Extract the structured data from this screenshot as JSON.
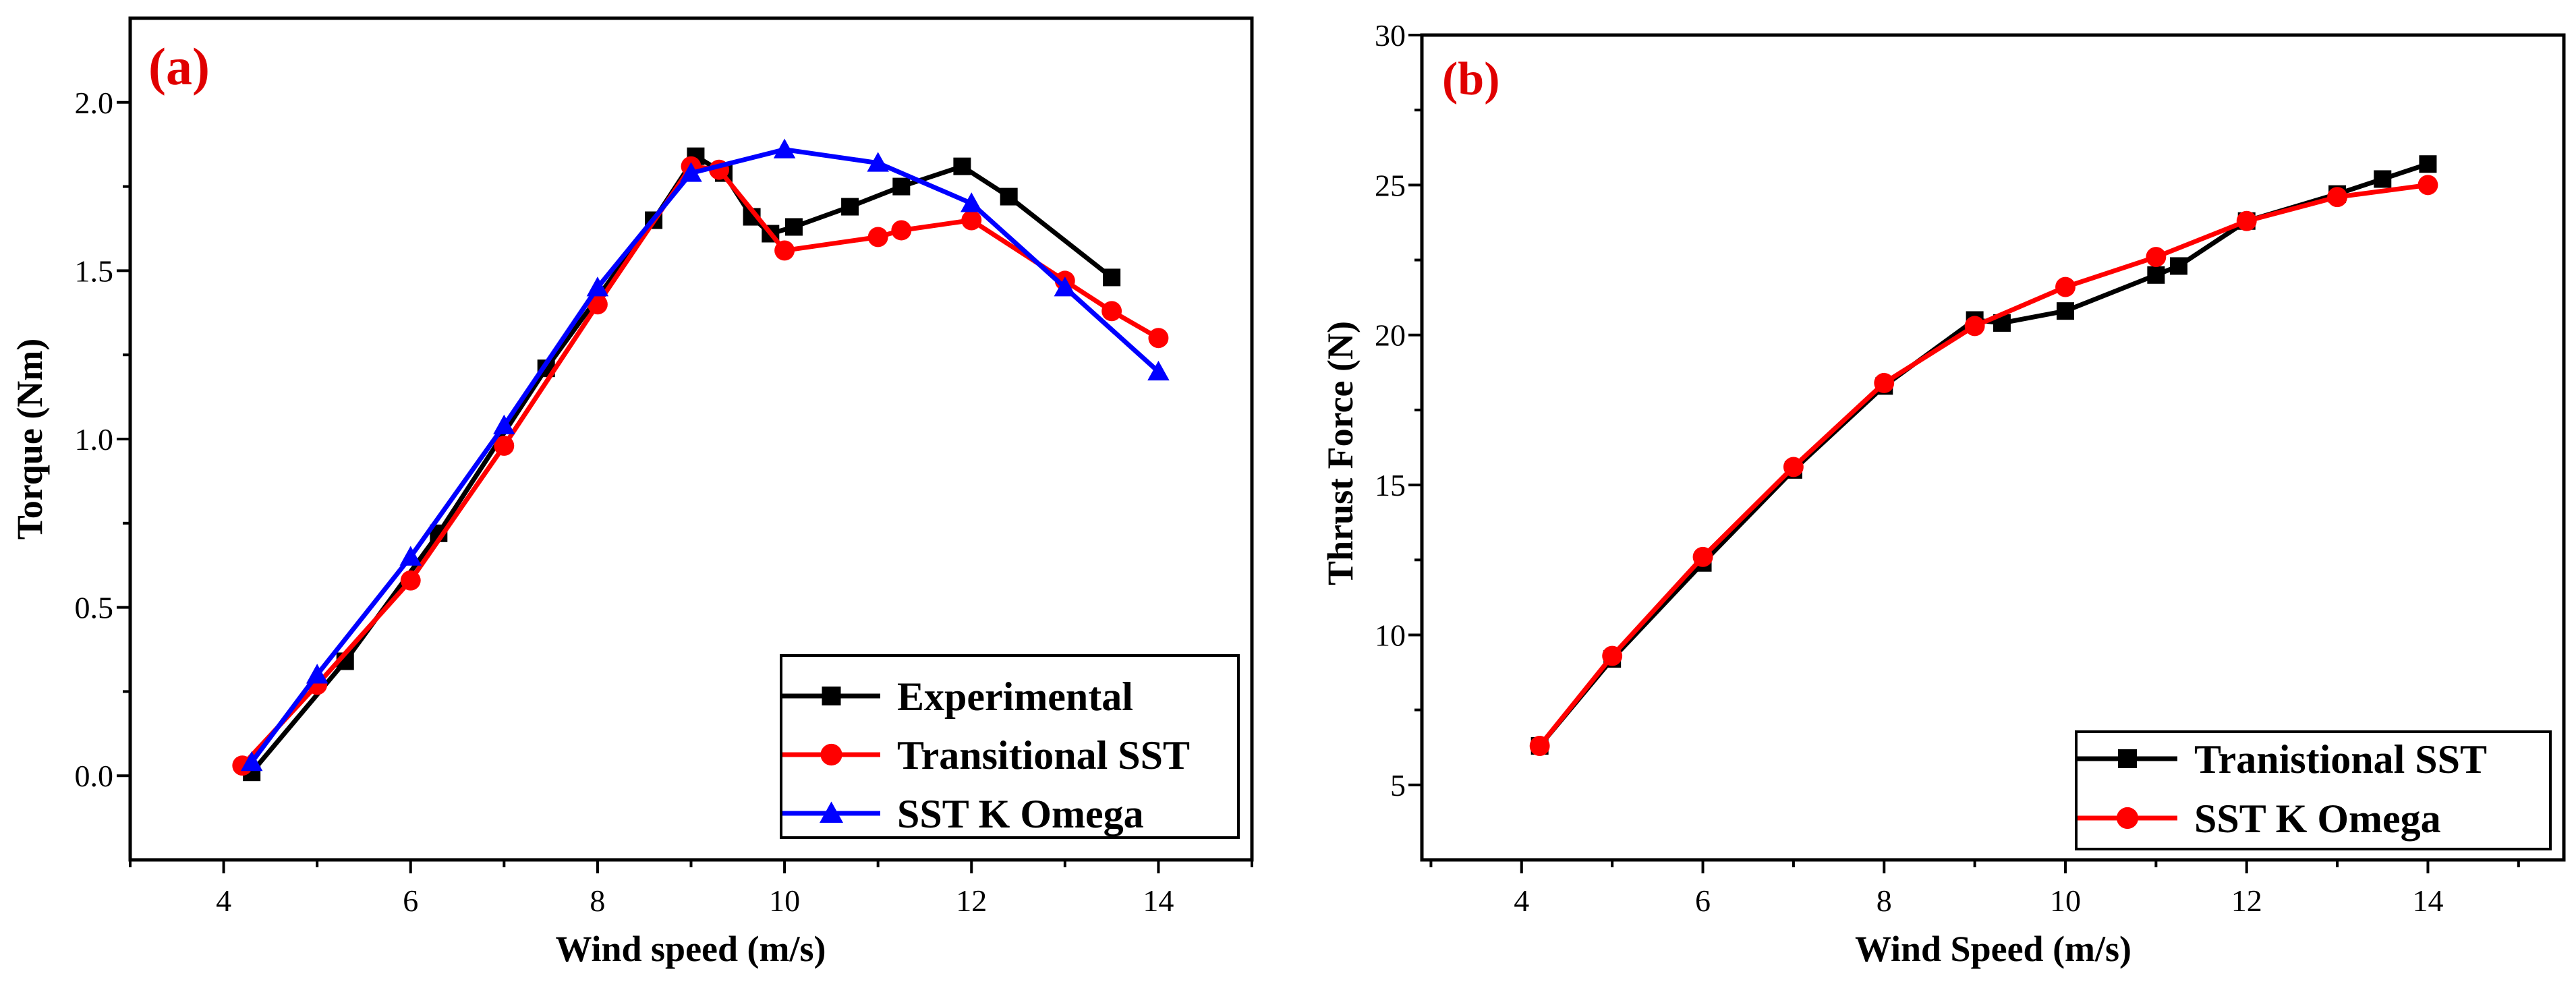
{
  "colors": {
    "experimental": "#000000",
    "transitional": "#ff0000",
    "sst_k_omega": "#0000ff",
    "panel_label": "#e00000",
    "axes": "#000000"
  },
  "chart_data": [
    {
      "type": "line",
      "panel_label": "(a)",
      "xlabel": "Wind speed (m/s)",
      "ylabel": "Torque (Nm)",
      "xlim": [
        3,
        15
      ],
      "ylim": [
        -0.25,
        2.25
      ],
      "xticks": [
        4,
        6,
        8,
        10,
        12,
        14
      ],
      "yticks": [
        0.0,
        0.5,
        1.0,
        1.5,
        2.0
      ],
      "xtick_labels": [
        "4",
        "6",
        "8",
        "10",
        "12",
        "14"
      ],
      "ytick_labels": [
        "0.0",
        "0.5",
        "1.0",
        "1.5",
        "2.0"
      ],
      "grid": false,
      "legend_position": "bottom-right",
      "series": [
        {
          "name": "Experimental",
          "marker": "square",
          "color": "#000000",
          "points": [
            [
              4.3,
              0.01
            ],
            [
              5.3,
              0.34
            ],
            [
              6.3,
              0.72
            ],
            [
              7.45,
              1.21
            ],
            [
              8.6,
              1.65
            ],
            [
              9.05,
              1.84
            ],
            [
              9.35,
              1.79
            ],
            [
              9.65,
              1.66
            ],
            [
              9.85,
              1.61
            ],
            [
              10.1,
              1.63
            ],
            [
              10.7,
              1.69
            ],
            [
              11.25,
              1.75
            ],
            [
              11.9,
              1.81
            ],
            [
              12.4,
              1.72
            ],
            [
              13.5,
              1.48
            ]
          ]
        },
        {
          "name": "Transitional SST",
          "marker": "circle",
          "color": "#ff0000",
          "points": [
            [
              4.2,
              0.03
            ],
            [
              5.0,
              0.27
            ],
            [
              6.0,
              0.58
            ],
            [
              7.0,
              0.98
            ],
            [
              8.0,
              1.4
            ],
            [
              9.0,
              1.81
            ],
            [
              9.3,
              1.8
            ],
            [
              10.0,
              1.56
            ],
            [
              11.0,
              1.6
            ],
            [
              11.25,
              1.62
            ],
            [
              12.0,
              1.65
            ],
            [
              13.0,
              1.47
            ],
            [
              13.5,
              1.38
            ],
            [
              14.0,
              1.3
            ]
          ]
        },
        {
          "name": "SST K Omega",
          "marker": "triangle",
          "color": "#0000ff",
          "points": [
            [
              4.3,
              0.04
            ],
            [
              5.0,
              0.3
            ],
            [
              6.0,
              0.65
            ],
            [
              7.0,
              1.04
            ],
            [
              8.0,
              1.45
            ],
            [
              9.0,
              1.79
            ],
            [
              10.0,
              1.86
            ],
            [
              11.0,
              1.82
            ],
            [
              12.0,
              1.7
            ],
            [
              13.0,
              1.45
            ],
            [
              14.0,
              1.2
            ]
          ]
        }
      ]
    },
    {
      "type": "line",
      "panel_label": "(b)",
      "xlabel": "Wind Speed (m/s)",
      "ylabel": "Thrust Force (N)",
      "xlim": [
        2.9,
        15.5
      ],
      "ylim": [
        2.5,
        30
      ],
      "xticks": [
        4,
        6,
        8,
        10,
        12,
        14
      ],
      "yticks": [
        5,
        10,
        15,
        20,
        25,
        30
      ],
      "xtick_labels": [
        "4",
        "6",
        "8",
        "10",
        "12",
        "14"
      ],
      "ytick_labels": [
        "5",
        "10",
        "15",
        "20",
        "25",
        "30"
      ],
      "grid": false,
      "legend_position": "bottom-right",
      "series": [
        {
          "name": "Tranistional SST",
          "marker": "square",
          "color": "#000000",
          "points": [
            [
              4.2,
              6.3
            ],
            [
              5.0,
              9.2
            ],
            [
              6.0,
              12.4
            ],
            [
              7.0,
              15.5
            ],
            [
              8.0,
              18.3
            ],
            [
              9.0,
              20.5
            ],
            [
              9.3,
              20.4
            ],
            [
              10.0,
              20.8
            ],
            [
              11.0,
              22.0
            ],
            [
              11.25,
              22.3
            ],
            [
              12.0,
              23.8
            ],
            [
              13.0,
              24.7
            ],
            [
              13.5,
              25.2
            ],
            [
              14.0,
              25.7
            ]
          ]
        },
        {
          "name": "SST K Omega",
          "marker": "circle",
          "color": "#ff0000",
          "points": [
            [
              4.2,
              6.3
            ],
            [
              5.0,
              9.3
            ],
            [
              6.0,
              12.6
            ],
            [
              7.0,
              15.6
            ],
            [
              8.0,
              18.4
            ],
            [
              9.0,
              20.3
            ],
            [
              10.0,
              21.6
            ],
            [
              11.0,
              22.6
            ],
            [
              12.0,
              23.8
            ],
            [
              13.0,
              24.6
            ],
            [
              14.0,
              25.0
            ]
          ]
        }
      ]
    }
  ]
}
